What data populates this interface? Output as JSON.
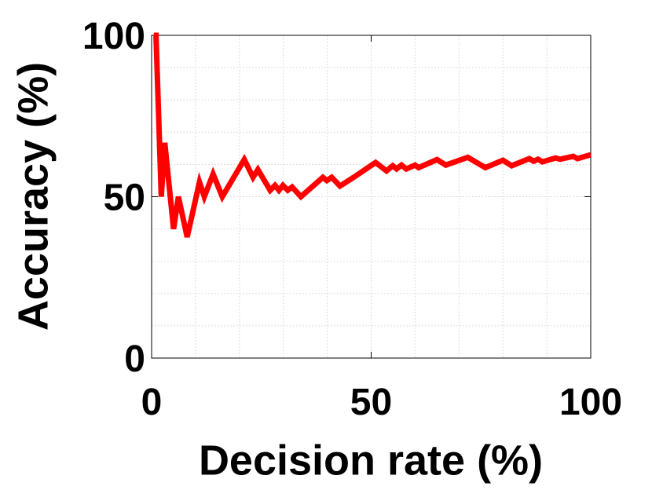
{
  "chart_data": {
    "type": "line",
    "xlabel": "Decision rate (%)",
    "ylabel": "Accuracy (%)",
    "x": [
      0.5,
      1,
      2.2,
      3,
      5,
      6.1,
      8.1,
      10.9,
      12,
      14,
      16.1,
      21.1,
      23.1,
      24.2,
      27,
      28.1,
      29,
      29.9,
      31,
      32,
      34,
      39,
      39.9,
      41,
      42.9,
      46,
      51,
      53.5,
      54.9,
      55.8,
      56.9,
      58,
      60,
      60.8,
      65,
      67,
      72,
      76,
      80,
      82,
      86,
      87,
      88,
      89,
      92,
      93,
      96,
      97,
      100
    ],
    "series": [
      {
        "name": "Accuracy",
        "color": "#ff0000",
        "values": [
          100,
          100,
          50,
          66.7,
          40,
          50,
          37.5,
          54.5,
          50,
          57,
          50,
          61.5,
          56,
          58.4,
          52,
          53.5,
          52,
          53.5,
          52,
          53,
          50,
          56,
          55,
          56,
          53.3,
          56,
          60.6,
          58,
          59.6,
          58.6,
          59.8,
          58.6,
          59.8,
          59,
          61.5,
          59.8,
          62.2,
          59,
          61.3,
          59.6,
          61.8,
          61,
          61.6,
          60.8,
          62,
          61.6,
          62.5,
          61.8,
          63
        ]
      }
    ],
    "xlim": [
      0,
      100
    ],
    "ylim": [
      0,
      100
    ],
    "xticks": [
      0,
      50,
      100
    ],
    "yticks": [
      0,
      50,
      100
    ],
    "grid": true
  }
}
